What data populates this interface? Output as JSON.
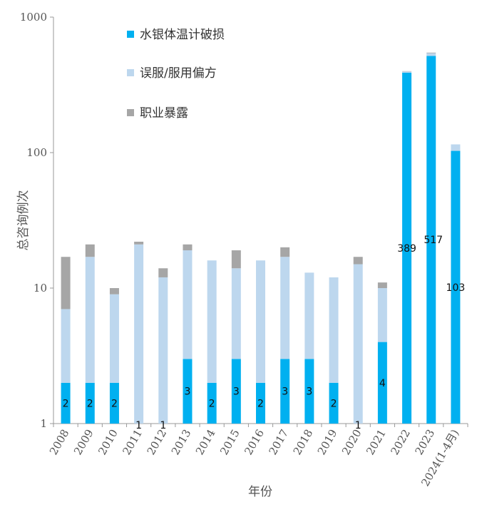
{
  "chart_data": {
    "type": "bar",
    "stacked": true,
    "yscale": "log",
    "ylim": [
      1,
      1000
    ],
    "yticks": [
      "1",
      "10",
      "100",
      "1000"
    ],
    "ylabel": "总咨询例次",
    "xlabel": "年份",
    "categories": [
      "2008",
      "2009",
      "2010",
      "2011",
      "2012",
      "2013",
      "2014",
      "2015",
      "2016",
      "2017",
      "2018",
      "2019",
      "2020",
      "2021",
      "2022",
      "2023",
      "2024(1-4月)"
    ],
    "series": [
      {
        "name": "水银体温计破损",
        "color": "#00b0f0",
        "values": [
          2,
          2,
          2,
          1,
          1,
          3,
          2,
          3,
          2,
          3,
          3,
          2,
          1,
          4,
          389,
          517,
          103
        ]
      },
      {
        "name": "误服/服用偏方",
        "color": "#bdd7ee",
        "values": [
          5,
          15,
          7,
          20,
          11,
          16,
          14,
          11,
          14,
          14,
          10,
          10,
          14,
          6,
          8,
          25,
          12
        ]
      },
      {
        "name": "职业暴露",
        "color": "#a6a6a6",
        "values": [
          10,
          4,
          1,
          1,
          2,
          2,
          0,
          5,
          0,
          3,
          0,
          0,
          2,
          1,
          2,
          5,
          0
        ]
      }
    ],
    "data_labels": [
      "2",
      "2",
      "2",
      "1",
      "1",
      "3",
      "2",
      "3",
      "2",
      "3",
      "3",
      "2",
      "1",
      "4",
      "389",
      "517",
      "103"
    ],
    "legend_position": "top-left"
  }
}
